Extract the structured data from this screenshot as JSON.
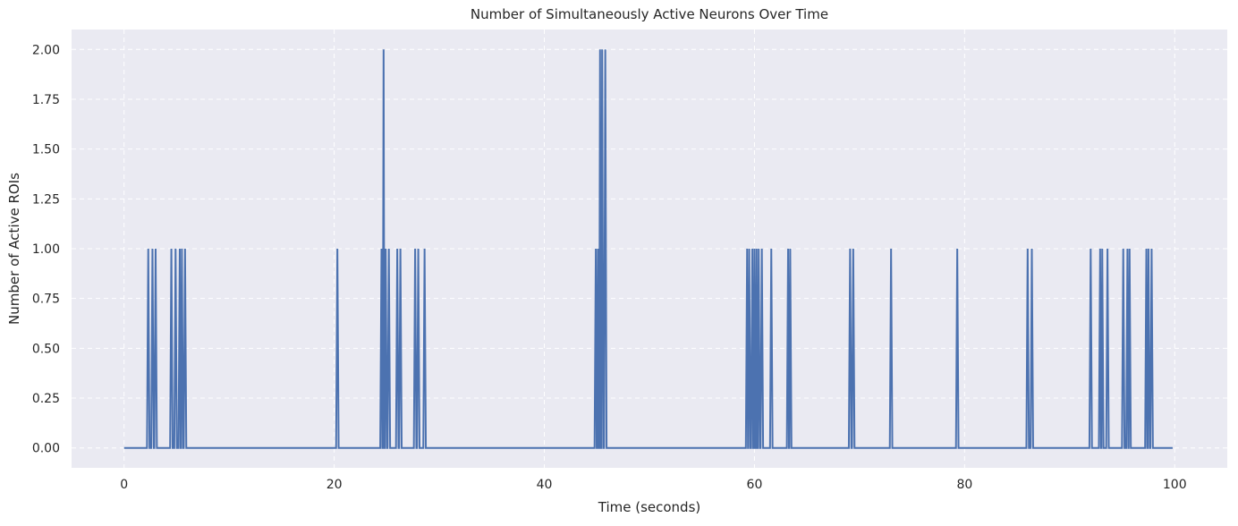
{
  "chart_data": {
    "type": "line",
    "title": "Number of Simultaneously Active Neurons Over Time",
    "xlabel": "Time (seconds)",
    "ylabel": "Number of Active ROIs",
    "xlim": [
      -5,
      105
    ],
    "ylim": [
      -0.1,
      2.1
    ],
    "xticks": [
      0,
      20,
      40,
      60,
      80,
      100
    ],
    "xtick_labels": [
      "0",
      "20",
      "40",
      "60",
      "80",
      "100"
    ],
    "yticks": [
      0,
      0.25,
      0.5,
      0.75,
      1.0,
      1.25,
      1.5,
      1.75,
      2.0
    ],
    "ytick_labels": [
      "0.00",
      "0.25",
      "0.50",
      "0.75",
      "1.00",
      "1.25",
      "1.50",
      "1.75",
      "2.00"
    ],
    "grid": true,
    "colors": {
      "plot_background": "#eaeaf2",
      "grid": "#ffffff",
      "line": "#4c72b0",
      "text": "#262626"
    },
    "x_range": [
      0,
      99.8
    ],
    "events": [
      {
        "t": 2.3,
        "v": 1
      },
      {
        "t": 2.7,
        "v": 1
      },
      {
        "t": 3.0,
        "v": 1
      },
      {
        "t": 4.5,
        "v": 1
      },
      {
        "t": 4.9,
        "v": 1
      },
      {
        "t": 5.3,
        "v": 1
      },
      {
        "t": 5.5,
        "v": 1
      },
      {
        "t": 5.8,
        "v": 1
      },
      {
        "t": 20.3,
        "v": 1
      },
      {
        "t": 24.5,
        "v": 1
      },
      {
        "t": 24.7,
        "v": 2
      },
      {
        "t": 24.9,
        "v": 1
      },
      {
        "t": 25.2,
        "v": 1
      },
      {
        "t": 26.0,
        "v": 1
      },
      {
        "t": 26.3,
        "v": 1
      },
      {
        "t": 27.7,
        "v": 1
      },
      {
        "t": 28.0,
        "v": 1
      },
      {
        "t": 28.6,
        "v": 1
      },
      {
        "t": 44.9,
        "v": 1
      },
      {
        "t": 45.1,
        "v": 1
      },
      {
        "t": 45.3,
        "v": 2
      },
      {
        "t": 45.5,
        "v": 2
      },
      {
        "t": 45.8,
        "v": 2
      },
      {
        "t": 59.3,
        "v": 1
      },
      {
        "t": 59.5,
        "v": 1
      },
      {
        "t": 59.8,
        "v": 1
      },
      {
        "t": 60.0,
        "v": 1
      },
      {
        "t": 60.2,
        "v": 1
      },
      {
        "t": 60.4,
        "v": 1
      },
      {
        "t": 60.7,
        "v": 1
      },
      {
        "t": 61.6,
        "v": 1
      },
      {
        "t": 63.2,
        "v": 1
      },
      {
        "t": 63.4,
        "v": 1
      },
      {
        "t": 69.1,
        "v": 1
      },
      {
        "t": 69.4,
        "v": 1
      },
      {
        "t": 73.0,
        "v": 1
      },
      {
        "t": 79.3,
        "v": 1
      },
      {
        "t": 86.0,
        "v": 1
      },
      {
        "t": 86.4,
        "v": 1
      },
      {
        "t": 92.0,
        "v": 1
      },
      {
        "t": 92.9,
        "v": 1
      },
      {
        "t": 93.1,
        "v": 1
      },
      {
        "t": 93.6,
        "v": 1
      },
      {
        "t": 95.1,
        "v": 1
      },
      {
        "t": 95.5,
        "v": 1
      },
      {
        "t": 95.7,
        "v": 1
      },
      {
        "t": 97.3,
        "v": 1
      },
      {
        "t": 97.5,
        "v": 1
      },
      {
        "t": 97.8,
        "v": 1
      }
    ]
  }
}
